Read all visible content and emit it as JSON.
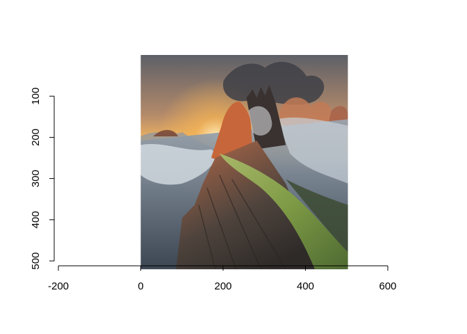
{
  "chart_data": {
    "type": "image",
    "title": "",
    "xlabel": "",
    "ylabel": "",
    "xlim": [
      -200,
      600
    ],
    "ylim": [
      500,
      100
    ],
    "x_ticks": [
      -200,
      0,
      200,
      400,
      600
    ],
    "y_ticks": [
      100,
      200,
      300,
      400,
      500
    ],
    "x_tick_labels": [
      "-200",
      "0",
      "200",
      "400",
      "600"
    ],
    "y_tick_labels": [
      "100",
      "200",
      "300",
      "400",
      "500"
    ],
    "image_extent": {
      "x": [
        0,
        510
      ],
      "y": [
        0,
        510
      ]
    },
    "image_subject": "mountain-ridge-sunset-photo",
    "grid": false,
    "colors": {
      "axis": "#000000",
      "sky_warm": "#f2b45a",
      "sky_cool": "#6b6f78",
      "cloud": "#b8c2cc",
      "rock_dark": "#4a3f38",
      "rock_lit": "#c86a3c",
      "grass": "#7f9a45",
      "valley": "#5d6b7a"
    }
  }
}
